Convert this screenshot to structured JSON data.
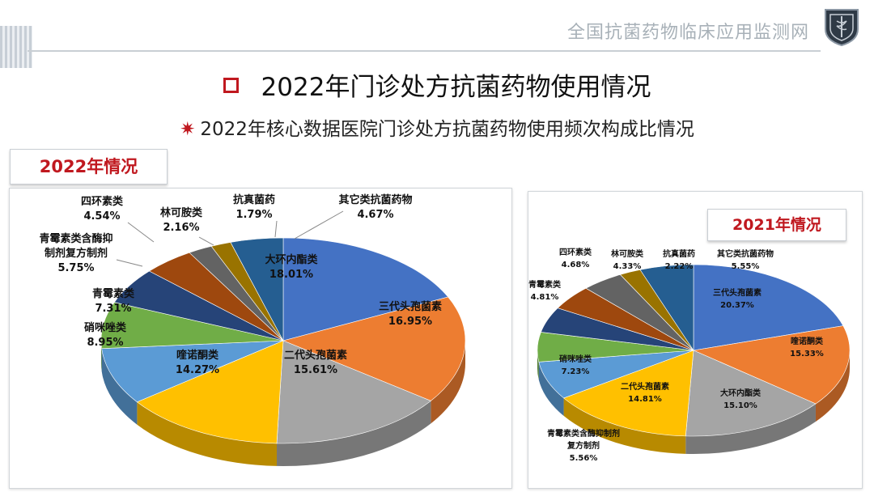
{
  "header": {
    "site_title": "全国抗菌药物临床应用监测网"
  },
  "main_title": "2022年门诊处方抗菌药物使用情况",
  "sub_title": "2022年核心数据医院门诊处方抗菌药物使用频次构成比情况",
  "colors": {
    "accent": "#c0181f"
  },
  "chart_data": [
    {
      "type": "pie",
      "title": "2022年情况",
      "slices": [
        {
          "label": "大环内酯类",
          "value": 18.01,
          "text": "18.01%",
          "color": "#4472c4"
        },
        {
          "label": "三代头孢菌素",
          "value": 16.95,
          "text": "16.95%",
          "color": "#ed7d31"
        },
        {
          "label": "二代头孢菌素",
          "value": 15.61,
          "text": "15.61%",
          "color": "#a5a5a5"
        },
        {
          "label": "喹诺酮类",
          "value": 14.27,
          "text": "14.27%",
          "color": "#ffc000"
        },
        {
          "label": "硝咪唑类",
          "value": 8.95,
          "text": "8.95%",
          "color": "#5b9bd5"
        },
        {
          "label": "青霉素类",
          "value": 7.31,
          "text": "7.31%",
          "color": "#70ad47"
        },
        {
          "label": "青霉素类含酶抑制剂复方制剂",
          "value": 5.75,
          "text": "5.75%",
          "color": "#264478"
        },
        {
          "label": "四环素类",
          "value": 4.54,
          "text": "4.54%",
          "color": "#9e480e"
        },
        {
          "label": "林可胺类",
          "value": 2.16,
          "text": "2.16%",
          "color": "#636363"
        },
        {
          "label": "抗真菌药",
          "value": 1.79,
          "text": "1.79%",
          "color": "#997300"
        },
        {
          "label": "其它类抗菌药物",
          "value": 4.67,
          "text": "4.67%",
          "color": "#255e91"
        }
      ]
    },
    {
      "type": "pie",
      "title": "2021年情况",
      "slices": [
        {
          "label": "三代头孢菌素",
          "value": 20.37,
          "text": "20.37%",
          "color": "#4472c4"
        },
        {
          "label": "喹诺酮类",
          "value": 15.33,
          "text": "15.33%",
          "color": "#ed7d31"
        },
        {
          "label": "大环内酯类",
          "value": 15.1,
          "text": "15.10%",
          "color": "#a5a5a5"
        },
        {
          "label": "二代头孢菌素",
          "value": 14.81,
          "text": "14.81%",
          "color": "#ffc000"
        },
        {
          "label": "硝咪唑类",
          "value": 7.23,
          "text": "7.23%",
          "color": "#5b9bd5"
        },
        {
          "label": "青霉素类含酶抑制剂复方制剂",
          "value": 5.56,
          "text": "5.56%",
          "color": "#70ad47"
        },
        {
          "label": "青霉素类",
          "value": 4.81,
          "text": "4.81%",
          "color": "#264478"
        },
        {
          "label": "四环素类",
          "value": 4.68,
          "text": "4.68%",
          "color": "#9e480e"
        },
        {
          "label": "林可胺类",
          "value": 4.33,
          "text": "4.33%",
          "color": "#636363"
        },
        {
          "label": "抗真菌药",
          "value": 2.22,
          "text": "2.22%",
          "color": "#997300"
        },
        {
          "label": "其它类抗菌药物",
          "value": 5.55,
          "text": "5.55%",
          "color": "#255e91"
        }
      ]
    }
  ]
}
